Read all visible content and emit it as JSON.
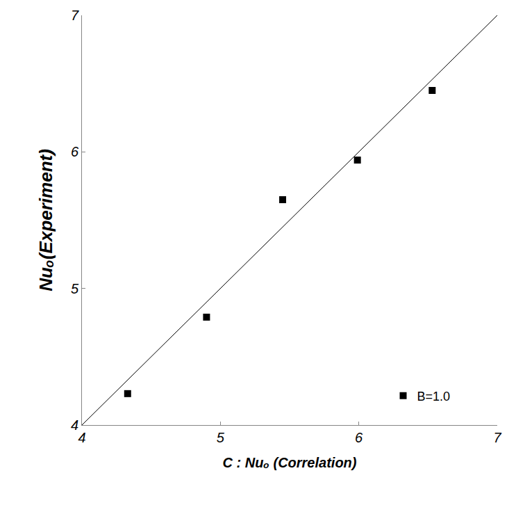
{
  "chart_data": {
    "type": "scatter",
    "x_label": "C : Nuₒ (Correlation)",
    "y_label": "Nuₒ(Experiment)",
    "xlim": [
      4,
      7
    ],
    "ylim": [
      4,
      7
    ],
    "xticks": [
      4,
      5,
      6,
      7
    ],
    "yticks": [
      4,
      5,
      6,
      7
    ],
    "grid": false,
    "legend": "bottom right",
    "series": [
      {
        "name": "B=1.0",
        "type": "scatter",
        "marker": "square",
        "color": "#000000",
        "x": [
          4.33,
          4.9,
          5.45,
          5.99,
          6.53
        ],
        "values": [
          4.23,
          4.79,
          5.65,
          5.94,
          6.45
        ]
      },
      {
        "type": "line",
        "line_style": "solid",
        "color": "#000000",
        "x": [
          4,
          7
        ],
        "values": [
          4,
          7
        ]
      }
    ]
  }
}
